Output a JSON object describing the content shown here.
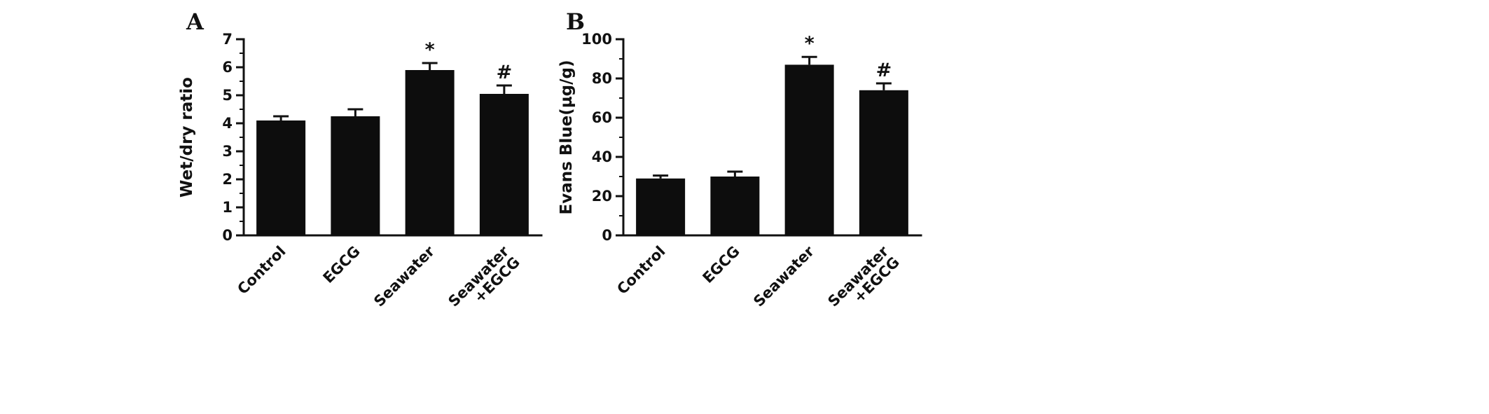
{
  "figure": {
    "background": "#ffffff"
  },
  "style": {
    "bar_color": "#0d0d0d",
    "axis_color": "#111111"
  },
  "chart_data": [
    {
      "type": "bar",
      "panel_label": "A",
      "categories": [
        "Control",
        "EGCG",
        "Seawater",
        "Seawater\n+EGCG"
      ],
      "values": [
        4.1,
        4.25,
        5.9,
        5.05
      ],
      "errors": [
        0.15,
        0.25,
        0.25,
        0.3
      ],
      "annotations": [
        "",
        "",
        "*",
        "#"
      ],
      "xlabel": "",
      "ylabel": "Wet/dry ratio",
      "ylim": [
        0,
        7
      ],
      "ytick_step": 1,
      "minor_tick_step": 0.5,
      "grid": false,
      "legend": "none"
    },
    {
      "type": "bar",
      "panel_label": "B",
      "categories": [
        "Control",
        "EGCG",
        "Seawater",
        "Seawater\n+EGCG"
      ],
      "values": [
        29,
        30,
        87,
        74
      ],
      "errors": [
        1.5,
        2.5,
        4,
        3.5
      ],
      "annotations": [
        "",
        "",
        "*",
        "#"
      ],
      "xlabel": "",
      "ylabel": "Evans Blue(µg/g)",
      "ylim": [
        0,
        100
      ],
      "ytick_step": 20,
      "minor_tick_step": 10,
      "grid": false,
      "legend": "none"
    }
  ]
}
